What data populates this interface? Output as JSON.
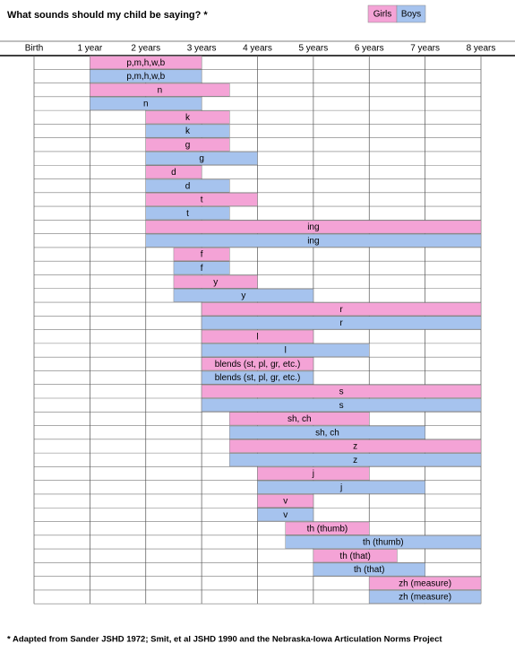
{
  "chart_data": {
    "type": "gantt",
    "title": "What sounds should my child be saying? *",
    "footnote": "* Adapted from Sander JSHD 1972; Smit, et al JSHD 1990 and the Nebraska-Iowa Articulation Norms Project",
    "xlim": [
      0,
      8
    ],
    "xticks": [
      {
        "value": 0,
        "label": "Birth"
      },
      {
        "value": 1,
        "label": "1 year"
      },
      {
        "value": 2,
        "label": "2 years"
      },
      {
        "value": 3,
        "label": "3 years"
      },
      {
        "value": 4,
        "label": "4 years"
      },
      {
        "value": 5,
        "label": "5 years"
      },
      {
        "value": 6,
        "label": "6 years"
      },
      {
        "value": 7,
        "label": "7 years"
      },
      {
        "value": 8,
        "label": "8 years"
      }
    ],
    "categories": [
      "p,m,h,w,b",
      "n",
      "k",
      "g",
      "d",
      "t",
      "ing",
      "f",
      "y",
      "r",
      "l",
      "blends (st, pl, gr, etc.)",
      "s",
      "sh, ch",
      "z",
      "j",
      "v",
      "th (thumb)",
      "th (that)",
      "zh (measure)"
    ],
    "series": [
      {
        "name": "Girls",
        "color": "#f4a3d6",
        "values": [
          [
            1,
            3
          ],
          [
            1,
            3.5
          ],
          [
            2,
            3.5
          ],
          [
            2,
            3.5
          ],
          [
            2,
            3
          ],
          [
            2,
            4
          ],
          [
            2,
            8
          ],
          [
            2.5,
            3.5
          ],
          [
            2.5,
            4
          ],
          [
            3,
            8
          ],
          [
            3,
            5
          ],
          [
            3,
            5
          ],
          [
            3,
            8
          ],
          [
            3.5,
            6
          ],
          [
            3.5,
            8
          ],
          [
            4,
            6
          ],
          [
            4,
            5
          ],
          [
            4.5,
            6
          ],
          [
            5,
            6.5
          ],
          [
            6,
            8
          ]
        ]
      },
      {
        "name": "Boys",
        "color": "#a6c3ee",
        "values": [
          [
            1,
            3
          ],
          [
            1,
            3
          ],
          [
            2,
            3.5
          ],
          [
            2,
            4
          ],
          [
            2,
            3.5
          ],
          [
            2,
            3.5
          ],
          [
            2,
            8
          ],
          [
            2.5,
            3.5
          ],
          [
            2.5,
            5
          ],
          [
            3,
            8
          ],
          [
            3,
            6
          ],
          [
            3,
            5
          ],
          [
            3,
            8
          ],
          [
            3.5,
            7
          ],
          [
            3.5,
            8
          ],
          [
            4,
            7
          ],
          [
            4,
            5
          ],
          [
            4.5,
            8
          ],
          [
            5,
            7
          ],
          [
            6,
            8
          ]
        ]
      }
    ]
  }
}
